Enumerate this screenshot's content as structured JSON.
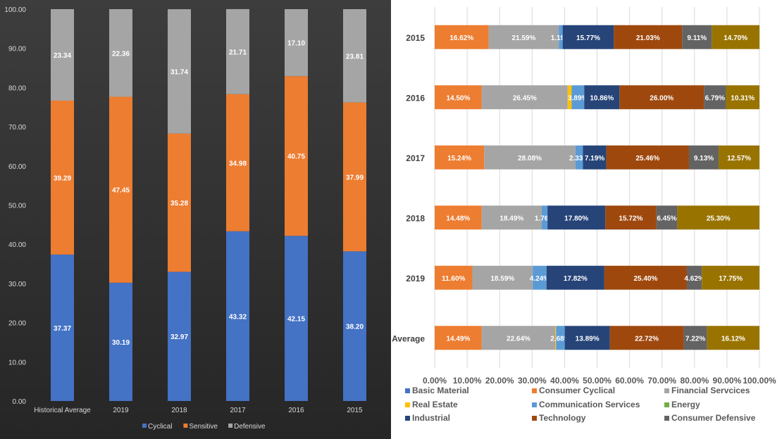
{
  "chart_data": [
    {
      "type": "bar",
      "stacked": true,
      "orientation": "vertical",
      "categories": [
        "Historical Average",
        "2019",
        "2018",
        "2017",
        "2016",
        "2015"
      ],
      "series": [
        {
          "name": "Cyclical",
          "color": "#4472c4",
          "values": [
            37.37,
            30.19,
            32.97,
            43.32,
            42.15,
            38.2
          ]
        },
        {
          "name": "Sensitive",
          "color": "#ed7d31",
          "values": [
            39.29,
            47.45,
            35.28,
            34.98,
            40.75,
            37.99
          ]
        },
        {
          "name": "Defensive",
          "color": "#a5a5a5",
          "values": [
            23.34,
            22.36,
            31.74,
            21.71,
            17.1,
            23.81
          ]
        }
      ],
      "ylim": [
        0,
        100
      ],
      "yticks": [
        "0.00",
        "10.00",
        "20.00",
        "30.00",
        "40.00",
        "50.00",
        "60.00",
        "70.00",
        "80.00",
        "90.00",
        "100.00"
      ],
      "grid": false,
      "legend": "bottom",
      "background": "#333333"
    },
    {
      "type": "bar",
      "stacked": true,
      "percent": true,
      "orientation": "horizontal",
      "categories": [
        "2015",
        "2016",
        "2017",
        "2018",
        "2019",
        "Average"
      ],
      "series": [
        {
          "name": "Basic Material",
          "color": "#4472c4",
          "values": [
            0,
            0,
            0,
            0,
            0,
            0
          ],
          "labels": [
            "",
            "",
            "",
            "",
            "",
            ""
          ]
        },
        {
          "name": "Consumer Cyclical",
          "color": "#ed7d31",
          "values": [
            16.62,
            14.5,
            15.24,
            14.48,
            11.6,
            14.49
          ],
          "labels": [
            "16.62%",
            "14.50%",
            "15.24%",
            "14.48%",
            "11.60%",
            "14.49%"
          ]
        },
        {
          "name": "Financial Servcices",
          "color": "#a5a5a5",
          "values": [
            21.59,
            26.45,
            28.08,
            18.49,
            18.59,
            22.64
          ],
          "labels": [
            "21.59%",
            "26.45%",
            "28.08%",
            "18.49%",
            "18.59%",
            "22.64%"
          ]
        },
        {
          "name": "Real Estate",
          "color": "#ffc000",
          "values": [
            0,
            1.2,
            0,
            0,
            0,
            0.24
          ],
          "labels": [
            "",
            "",
            "",
            "",
            "",
            ""
          ]
        },
        {
          "name": "Communication Services",
          "color": "#5b9bd5",
          "values": [
            1.19,
            3.89,
            2.33,
            1.76,
            4.24,
            2.68
          ],
          "labels": [
            "1.19%",
            "3.89%",
            "2.33%",
            "1.76%",
            "4.24%",
            "2.68%"
          ]
        },
        {
          "name": "Energy",
          "color": "#70ad47",
          "values": [
            0,
            0,
            0,
            0,
            0,
            0
          ],
          "labels": [
            "",
            "",
            "",
            "",
            "",
            ""
          ]
        },
        {
          "name": "Industrial",
          "color": "#264478",
          "values": [
            15.77,
            10.86,
            7.19,
            17.8,
            17.82,
            13.89
          ],
          "labels": [
            "15.77%",
            "10.86%",
            "7.19%",
            "17.80%",
            "17.82%",
            "13.89%"
          ]
        },
        {
          "name": "Technology",
          "color": "#9e480e",
          "values": [
            21.03,
            26.0,
            25.46,
            15.72,
            25.4,
            22.72
          ],
          "labels": [
            "21.03%",
            "26.00%",
            "25.46%",
            "15.72%",
            "25.40%",
            "22.72%"
          ]
        },
        {
          "name": "Consumer Defensive",
          "color": "#636363",
          "values": [
            9.11,
            6.79,
            9.13,
            6.45,
            4.62,
            7.22
          ],
          "labels": [
            "9.11%",
            "6.79%",
            "9.13%",
            "6.45%",
            "4.62%",
            "7.22%"
          ]
        },
        {
          "color": "#997300",
          "values": [
            14.7,
            10.31,
            12.57,
            25.3,
            17.75,
            16.12
          ],
          "labels": [
            "14.70%",
            "10.31%",
            "12.57%",
            "25.30%",
            "17.75%",
            "16.12%"
          ]
        }
      ],
      "xlim": [
        0,
        100
      ],
      "xticks": [
        "0.00%",
        "10.00%",
        "20.00%",
        "30.00%",
        "40.00%",
        "50.00%",
        "60.00%",
        "70.00%",
        "80.00%",
        "90.00%",
        "100.00%"
      ],
      "grid": true,
      "legend": "bottom"
    }
  ]
}
